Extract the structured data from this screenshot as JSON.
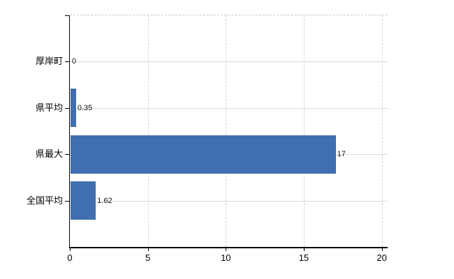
{
  "chart_data": {
    "type": "bar",
    "orientation": "horizontal",
    "title": "",
    "xlabel": "",
    "ylabel": "",
    "categories": [
      "厚岸町",
      "県平均",
      "県最大",
      "全国平均"
    ],
    "values": [
      0,
      0.35,
      17,
      1.62
    ],
    "value_labels": [
      "0",
      "0.35",
      "17",
      "1.62"
    ],
    "xlim": [
      0,
      20.4
    ],
    "xticks": [
      0,
      5,
      10,
      15,
      20
    ],
    "xtick_labels": [
      "0",
      "5",
      "10",
      "15",
      "20"
    ],
    "grid": true,
    "legend": false,
    "bar_color": "#3f6fae",
    "h_gridline_color": "#d6dcd2",
    "v_gridline_color": "#d8d1d8",
    "axis_color": "#000000",
    "background_color": "#ffffff"
  }
}
